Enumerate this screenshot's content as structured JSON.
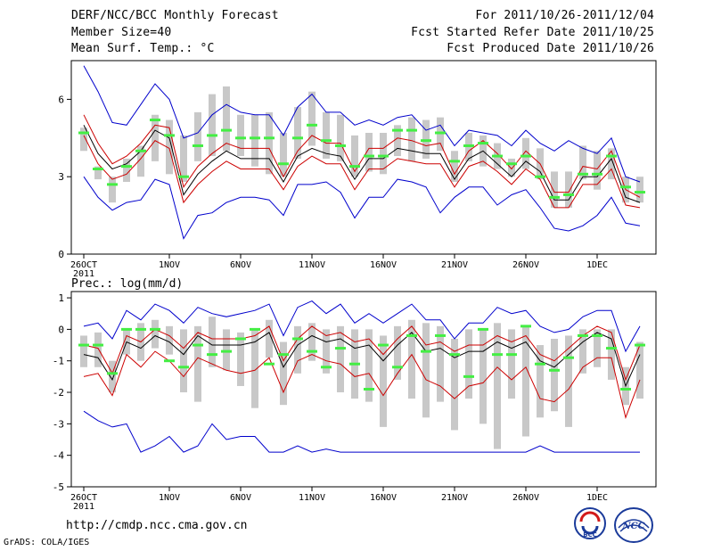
{
  "header": {
    "title": "DERF/NCC/BCC Monthly Forecast",
    "member_size": "Member Size=40",
    "variable": "Mean Surf. Temp.: °C",
    "forecast_period": "For 2011/10/26-2011/12/04",
    "fcst_started": "Fcst Started Refer Date 2011/10/25",
    "fcst_produced": "Fcst Produced Date 2011/10/26"
  },
  "footer": {
    "url": "http://cmdp.ncc.cma.gov.cn",
    "grads_credit": "GrADS: COLA/IGES",
    "logo_bcc": "BCC",
    "logo_ncc": "NCC"
  },
  "colors": {
    "envelope": "#0000cc",
    "spread": "#cc0000",
    "mean": "#000000",
    "box": "#c8c8c8",
    "obs": "#44ee44"
  },
  "chart_data": [
    {
      "id": "temp",
      "type": "line",
      "title": "",
      "ylabel": "",
      "ylim": [
        0,
        7.5
      ],
      "yticks": [
        0,
        3,
        6
      ],
      "grid": false,
      "x": [
        0,
        1,
        2,
        3,
        4,
        5,
        6,
        7,
        8,
        9,
        10,
        11,
        12,
        13,
        14,
        15,
        16,
        17,
        18,
        19,
        20,
        21,
        22,
        23,
        24,
        25,
        26,
        27,
        28,
        29,
        30,
        31,
        32,
        33,
        34,
        35,
        36,
        37,
        38,
        39
      ],
      "xticks": [
        {
          "i": 0,
          "label": "26OCT",
          "year": "2011"
        },
        {
          "i": 6,
          "label": "1NOV"
        },
        {
          "i": 11,
          "label": "6NOV"
        },
        {
          "i": 16,
          "label": "11NOV"
        },
        {
          "i": 21,
          "label": "16NOV"
        },
        {
          "i": 26,
          "label": "21NOV"
        },
        {
          "i": 31,
          "label": "26NOV"
        },
        {
          "i": 36,
          "label": "1DEC"
        }
      ],
      "series": [
        {
          "name": "upper envelope",
          "role": "envelope_upper",
          "values": [
            7.3,
            6.3,
            5.1,
            5.0,
            5.8,
            6.6,
            6.0,
            4.5,
            4.7,
            5.4,
            5.8,
            5.5,
            5.4,
            5.4,
            4.6,
            5.7,
            6.2,
            5.5,
            5.5,
            5.0,
            5.2,
            5.0,
            5.3,
            5.4,
            4.8,
            5.0,
            4.2,
            4.8,
            4.7,
            4.6,
            4.2,
            4.8,
            4.3,
            4.0,
            4.4,
            4.1,
            3.9,
            4.5,
            3.0,
            2.8
          ]
        },
        {
          "name": "mean + spread",
          "role": "spread_upper",
          "values": [
            5.4,
            4.3,
            3.5,
            3.8,
            4.3,
            5.0,
            4.9,
            2.6,
            3.4,
            3.9,
            4.3,
            4.1,
            4.1,
            4.1,
            3.0,
            4.0,
            4.6,
            4.3,
            4.3,
            3.2,
            4.1,
            4.1,
            4.5,
            4.4,
            4.2,
            4.3,
            3.1,
            4.0,
            4.4,
            3.9,
            3.3,
            4.0,
            3.5,
            2.4,
            2.4,
            3.4,
            3.3,
            4.0,
            2.5,
            2.2
          ]
        },
        {
          "name": "ensemble mean",
          "role": "mean",
          "values": [
            5.0,
            3.9,
            3.3,
            3.5,
            4.0,
            4.8,
            4.5,
            2.3,
            3.1,
            3.6,
            4.0,
            3.7,
            3.7,
            3.7,
            2.8,
            3.8,
            4.1,
            3.9,
            3.8,
            2.9,
            3.7,
            3.7,
            4.1,
            4.0,
            3.9,
            3.9,
            2.9,
            3.7,
            4.0,
            3.5,
            3.0,
            3.6,
            3.2,
            2.1,
            2.1,
            3.0,
            3.0,
            3.7,
            2.2,
            2.0
          ]
        },
        {
          "name": "mean - spread",
          "role": "spread_lower",
          "values": [
            4.6,
            3.5,
            2.9,
            3.1,
            3.7,
            4.4,
            4.1,
            2.0,
            2.7,
            3.2,
            3.6,
            3.3,
            3.3,
            3.3,
            2.5,
            3.4,
            3.8,
            3.5,
            3.5,
            2.5,
            3.3,
            3.3,
            3.7,
            3.6,
            3.5,
            3.5,
            2.6,
            3.4,
            3.6,
            3.2,
            2.7,
            3.3,
            2.9,
            1.8,
            1.8,
            2.7,
            2.7,
            3.3,
            1.9,
            1.8
          ]
        },
        {
          "name": "lower envelope",
          "role": "envelope_lower",
          "values": [
            3.0,
            2.2,
            1.7,
            2.0,
            2.1,
            2.9,
            2.7,
            0.6,
            1.5,
            1.6,
            2.0,
            2.2,
            2.2,
            2.1,
            1.5,
            2.7,
            2.7,
            2.8,
            2.4,
            1.4,
            2.2,
            2.2,
            2.9,
            2.8,
            2.6,
            1.6,
            2.2,
            2.6,
            2.6,
            1.9,
            2.3,
            2.5,
            1.8,
            1.0,
            0.9,
            1.1,
            1.5,
            2.2,
            1.2,
            1.1
          ]
        }
      ],
      "boxes": {
        "low": [
          4.0,
          2.9,
          2.0,
          2.8,
          3.0,
          3.6,
          3.1,
          2.8,
          3.6,
          3.8,
          4.0,
          3.8,
          3.4,
          3.1,
          3.0,
          3.7,
          4.2,
          3.7,
          3.6,
          3.0,
          3.2,
          3.1,
          3.8,
          3.6,
          3.7,
          4.0,
          2.8,
          3.6,
          3.4,
          3.3,
          3.0,
          3.3,
          2.9,
          1.8,
          1.8,
          2.9,
          2.5,
          2.9,
          2.0,
          2.0
        ],
        "high": [
          4.9,
          3.4,
          3.0,
          3.7,
          4.2,
          5.4,
          5.2,
          4.6,
          5.5,
          6.2,
          6.5,
          5.4,
          5.4,
          5.5,
          4.7,
          5.7,
          6.3,
          5.5,
          5.4,
          4.6,
          4.7,
          4.7,
          5.0,
          5.3,
          5.2,
          5.3,
          4.0,
          4.7,
          4.6,
          4.3,
          3.7,
          4.5,
          4.1,
          3.2,
          3.2,
          4.2,
          4.0,
          4.1,
          3.0,
          3.0
        ]
      },
      "observed": [
        4.7,
        3.3,
        2.7,
        3.4,
        4.0,
        5.2,
        4.6,
        3.0,
        4.2,
        4.6,
        4.8,
        4.5,
        4.5,
        4.5,
        3.5,
        4.5,
        5.0,
        4.4,
        4.2,
        3.4,
        3.8,
        3.8,
        4.8,
        4.8,
        4.4,
        4.7,
        3.6,
        4.2,
        4.3,
        3.8,
        3.5,
        3.8,
        3.0,
        2.2,
        2.3,
        3.1,
        3.1,
        3.8,
        2.6,
        2.4
      ]
    },
    {
      "id": "prec",
      "type": "line",
      "title": "Prec.: log(mm/d)",
      "ylabel": "",
      "ylim": [
        -5,
        1.2
      ],
      "yticks": [
        -5,
        -4,
        -3,
        -2,
        -1,
        0,
        1
      ],
      "grid": false,
      "x": [
        0,
        1,
        2,
        3,
        4,
        5,
        6,
        7,
        8,
        9,
        10,
        11,
        12,
        13,
        14,
        15,
        16,
        17,
        18,
        19,
        20,
        21,
        22,
        23,
        24,
        25,
        26,
        27,
        28,
        29,
        30,
        31,
        32,
        33,
        34,
        35,
        36,
        37,
        38,
        39
      ],
      "xticks": [
        {
          "i": 0,
          "label": "26OCT",
          "year": "2011"
        },
        {
          "i": 6,
          "label": "1NOV"
        },
        {
          "i": 11,
          "label": "6NOV"
        },
        {
          "i": 16,
          "label": "11NOV"
        },
        {
          "i": 21,
          "label": "16NOV"
        },
        {
          "i": 26,
          "label": "21NOV"
        },
        {
          "i": 31,
          "label": "26NOV"
        },
        {
          "i": 36,
          "label": "1DEC"
        }
      ],
      "series": [
        {
          "name": "upper envelope",
          "role": "envelope_upper",
          "values": [
            0.1,
            0.2,
            -0.3,
            0.6,
            0.3,
            0.8,
            0.6,
            0.2,
            0.7,
            0.5,
            0.4,
            0.5,
            0.6,
            0.8,
            -0.2,
            0.7,
            0.9,
            0.5,
            0.8,
            0.2,
            0.5,
            0.2,
            0.5,
            0.8,
            0.3,
            0.3,
            -0.3,
            0.2,
            0.2,
            0.7,
            0.5,
            0.6,
            0.1,
            -0.1,
            0.0,
            0.4,
            0.6,
            0.6,
            -0.7,
            0.1
          ]
        },
        {
          "name": "mean + spread",
          "role": "spread_upper",
          "values": [
            -0.5,
            -0.6,
            -1.4,
            -0.2,
            -0.4,
            0.0,
            -0.2,
            -0.6,
            -0.1,
            -0.3,
            -0.3,
            -0.3,
            -0.2,
            0.1,
            -1.0,
            -0.3,
            0.1,
            -0.2,
            -0.1,
            -0.4,
            -0.3,
            -0.8,
            -0.3,
            0.1,
            -0.5,
            -0.4,
            -0.7,
            -0.5,
            -0.5,
            -0.2,
            -0.4,
            -0.2,
            -0.8,
            -1.0,
            -0.6,
            -0.2,
            0.1,
            -0.1,
            -1.6,
            -0.5
          ]
        },
        {
          "name": "ensemble mean",
          "role": "mean",
          "values": [
            -0.8,
            -0.9,
            -1.6,
            -0.4,
            -0.6,
            -0.2,
            -0.4,
            -0.8,
            -0.2,
            -0.5,
            -0.5,
            -0.5,
            -0.4,
            -0.1,
            -1.2,
            -0.5,
            -0.2,
            -0.4,
            -0.3,
            -0.6,
            -0.5,
            -1.0,
            -0.5,
            -0.1,
            -0.7,
            -0.6,
            -0.9,
            -0.7,
            -0.7,
            -0.4,
            -0.6,
            -0.4,
            -1.0,
            -1.2,
            -0.8,
            -0.4,
            -0.1,
            -0.3,
            -1.8,
            -0.8
          ]
        },
        {
          "name": "mean - spread",
          "role": "spread_lower",
          "values": [
            -1.5,
            -1.4,
            -2.1,
            -0.8,
            -1.2,
            -0.7,
            -1.0,
            -1.5,
            -0.9,
            -1.1,
            -1.3,
            -1.4,
            -1.3,
            -0.9,
            -2.0,
            -1.0,
            -0.8,
            -1.0,
            -1.1,
            -1.5,
            -1.4,
            -2.1,
            -1.4,
            -0.8,
            -1.6,
            -1.8,
            -2.2,
            -1.8,
            -1.7,
            -1.2,
            -1.6,
            -1.2,
            -2.2,
            -2.3,
            -1.9,
            -1.2,
            -0.9,
            -0.9,
            -2.8,
            -1.6
          ]
        },
        {
          "name": "lower envelope",
          "role": "envelope_lower",
          "values": [
            -2.6,
            -2.9,
            -3.1,
            -3.0,
            -3.9,
            -3.7,
            -3.4,
            -3.9,
            -3.7,
            -3.0,
            -3.5,
            -3.4,
            -3.4,
            -3.9,
            -3.9,
            -3.7,
            -3.9,
            -3.8,
            -3.9,
            -3.9,
            -3.9,
            -3.9,
            -3.9,
            -3.9,
            -3.9,
            -3.9,
            -3.9,
            -3.9,
            -3.9,
            -3.9,
            -3.9,
            -3.9,
            -3.7,
            -3.9,
            -3.9,
            -3.9,
            -3.9,
            -3.9,
            -3.9,
            -3.9
          ]
        }
      ],
      "boxes": {
        "low": [
          -1.2,
          -1.2,
          -2.0,
          -0.8,
          -1.0,
          -0.6,
          -0.8,
          -2.0,
          -2.3,
          -1.2,
          -1.3,
          -1.8,
          -2.5,
          -0.9,
          -2.4,
          -1.4,
          -1.0,
          -1.4,
          -2.0,
          -2.2,
          -2.3,
          -3.1,
          -1.6,
          -2.2,
          -2.8,
          -2.3,
          -3.2,
          -2.2,
          -3.0,
          -3.8,
          -2.2,
          -3.4,
          -2.8,
          -2.6,
          -3.1,
          -1.4,
          -1.2,
          -1.6,
          -2.4,
          -2.2
        ],
        "high": [
          -0.2,
          -0.1,
          -1.0,
          0.0,
          0.2,
          0.3,
          0.1,
          0.0,
          0.1,
          0.4,
          0.0,
          -0.1,
          0.0,
          0.3,
          -0.4,
          0.1,
          0.2,
          0.0,
          0.1,
          0.0,
          0.0,
          -0.2,
          0.1,
          0.3,
          0.2,
          0.1,
          -0.3,
          0.0,
          0.0,
          0.2,
          0.0,
          0.1,
          -0.5,
          -0.3,
          -0.2,
          0.0,
          0.0,
          0.0,
          -1.2,
          -0.4
        ]
      },
      "observed": [
        -0.5,
        -0.5,
        -1.4,
        0.0,
        0.0,
        0.0,
        -1.0,
        -1.2,
        -0.5,
        -0.8,
        -0.7,
        -0.3,
        0.0,
        -1.1,
        -0.8,
        -0.3,
        -0.7,
        -1.2,
        -0.6,
        -1.1,
        -1.9,
        -0.5,
        -1.2,
        -0.2,
        -0.7,
        -0.2,
        -0.8,
        -1.5,
        0.0,
        -0.8,
        -0.8,
        0.1,
        -1.1,
        -1.3,
        -0.9,
        -0.2,
        -0.2,
        -0.6,
        -1.9,
        -0.5
      ]
    }
  ]
}
